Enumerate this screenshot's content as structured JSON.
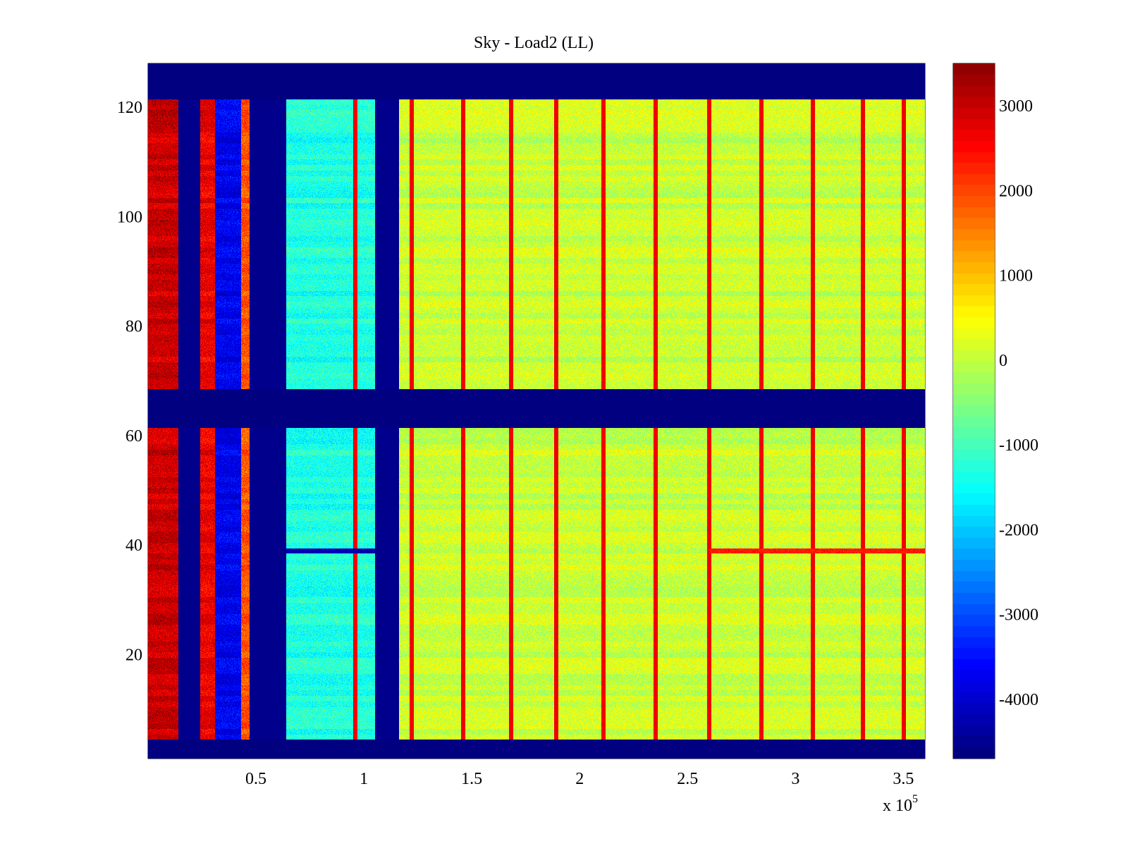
{
  "chart_data": {
    "type": "heatmap",
    "title": "Sky - Load2 (LL)",
    "xlabel": "",
    "ylabel": "",
    "x_multiplier_label": "x 10",
    "x_multiplier_exponent": "5",
    "x_scale": 100000,
    "xlim": [
      0,
      3.6
    ],
    "ylim": [
      1,
      128
    ],
    "x_ticks": [
      0.5,
      1,
      1.5,
      2,
      2.5,
      3,
      3.5
    ],
    "x_tick_labels": [
      "0.5",
      "1",
      "1.5",
      "2",
      "2.5",
      "3",
      "3.5"
    ],
    "y_ticks": [
      20,
      40,
      60,
      80,
      100,
      120
    ],
    "y_tick_labels": [
      "20",
      "40",
      "60",
      "80",
      "100",
      "120"
    ],
    "colormap": "jet",
    "clim": [
      -4700,
      3500
    ],
    "colorbar": {
      "ticks": [
        3000,
        2000,
        1000,
        0,
        -1000,
        -2000,
        -3000,
        -4000
      ],
      "tick_labels": [
        "3000",
        "2000",
        "1000",
        "0",
        "-1000",
        "-2000",
        "-3000",
        "-4000"
      ]
    },
    "masked_rows": [
      [
        1,
        4
      ],
      [
        62,
        68
      ],
      [
        122,
        128
      ]
    ],
    "x_regions": [
      {
        "x_range": [
          0,
          0.14
        ],
        "value": 2900
      },
      {
        "x_range": [
          0.14,
          0.24
        ],
        "value": -4600
      },
      {
        "x_range": [
          0.24,
          0.31
        ],
        "value": 2600
      },
      {
        "x_range": [
          0.31,
          0.43
        ],
        "value": -3800
      },
      {
        "x_range": [
          0.43,
          0.47
        ],
        "value": 1800
      },
      {
        "x_range": [
          0.47,
          0.64
        ],
        "value": -4600
      },
      {
        "x_range": [
          0.64,
          1.05
        ],
        "value": -1400
      },
      {
        "x_range": [
          1.05,
          1.16
        ],
        "value": -4600
      },
      {
        "x_range": [
          1.16,
          3.6
        ],
        "value": 0
      }
    ],
    "red_lines_x": [
      0.96,
      1.22,
      1.46,
      1.68,
      1.89,
      2.11,
      2.35,
      2.6,
      2.84,
      3.08,
      3.31,
      3.5
    ],
    "red_line_value": 2600,
    "special_row": {
      "y": 39,
      "values": [
        {
          "x_range": [
            0.64,
            1.05
          ],
          "value": -4300
        },
        {
          "x_range": [
            2.6,
            3.6
          ],
          "value": 2300
        }
      ]
    }
  },
  "colors": {
    "background": "#ffffff",
    "axis": "#000000",
    "mask": "#000080"
  }
}
